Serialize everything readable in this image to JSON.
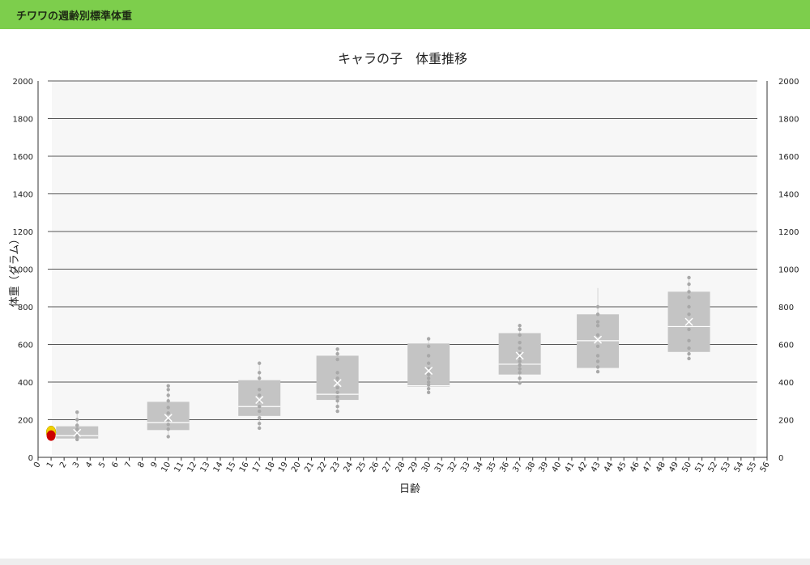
{
  "header": {
    "title": "チワワの週齢別標準体重"
  },
  "chart_data": {
    "type": "box",
    "title": "キャラの子　体重推移",
    "xlabel": "日齢",
    "ylabel": "体重（グラム）",
    "xlim": [
      0,
      56
    ],
    "ylim": [
      0,
      2000
    ],
    "x_ticks": [
      0,
      1,
      2,
      3,
      4,
      5,
      6,
      7,
      8,
      9,
      10,
      11,
      12,
      13,
      14,
      15,
      16,
      17,
      18,
      19,
      20,
      21,
      22,
      23,
      24,
      25,
      26,
      27,
      28,
      29,
      30,
      31,
      32,
      33,
      34,
      35,
      36,
      37,
      38,
      39,
      40,
      41,
      42,
      43,
      44,
      45,
      46,
      47,
      48,
      49,
      50,
      51,
      52,
      53,
      54,
      55,
      56
    ],
    "y_ticks": [
      0,
      200,
      400,
      600,
      800,
      1000,
      1200,
      1400,
      1600,
      1800,
      2000
    ],
    "grid": true,
    "legend": "none",
    "colors": {
      "box": "#c4c4c4",
      "point": "#a8a8a8",
      "gridline": "#555555",
      "marker_outer": "#f0d000",
      "marker_inner": "#cc0000"
    },
    "boxes": [
      {
        "x": 3,
        "min": 90,
        "q1": 100,
        "median": 115,
        "q3": 165,
        "max": 245,
        "mean": 130,
        "points": [
          95,
          110,
          120,
          135,
          150,
          170,
          200,
          240
        ]
      },
      {
        "x": 10,
        "min": 105,
        "q1": 145,
        "median": 185,
        "q3": 295,
        "max": 385,
        "mean": 210,
        "points": [
          110,
          150,
          175,
          200,
          235,
          265,
          300,
          330,
          360,
          380
        ]
      },
      {
        "x": 17,
        "min": 150,
        "q1": 220,
        "median": 270,
        "q3": 410,
        "max": 505,
        "mean": 305,
        "points": [
          155,
          180,
          210,
          245,
          270,
          300,
          330,
          360,
          420,
          450,
          500
        ]
      },
      {
        "x": 23,
        "min": 240,
        "q1": 305,
        "median": 335,
        "q3": 540,
        "max": 575,
        "mean": 395,
        "points": [
          245,
          270,
          300,
          320,
          345,
          370,
          400,
          420,
          450,
          520,
          550,
          575
        ]
      },
      {
        "x": 30,
        "min": 340,
        "q1": 375,
        "median": 380,
        "q3": 605,
        "max": 640,
        "mean": 460,
        "points": [
          345,
          365,
          385,
          400,
          420,
          440,
          470,
          500,
          540,
          590,
          630
        ]
      },
      {
        "x": 37,
        "min": 390,
        "q1": 440,
        "median": 495,
        "q3": 660,
        "max": 710,
        "mean": 540,
        "points": [
          395,
          420,
          450,
          470,
          490,
          510,
          530,
          550,
          580,
          610,
          650,
          680,
          700
        ]
      },
      {
        "x": 43,
        "min": 450,
        "q1": 475,
        "median": 620,
        "q3": 760,
        "max": 900,
        "mean": 625,
        "points": [
          455,
          480,
          510,
          540,
          590,
          650,
          700,
          720,
          760,
          800
        ]
      },
      {
        "x": 50,
        "min": 520,
        "q1": 560,
        "median": 695,
        "q3": 880,
        "max": 960,
        "mean": 720,
        "points": [
          525,
          550,
          580,
          620,
          680,
          760,
          800,
          850,
          880,
          920,
          955
        ]
      }
    ],
    "current_value": {
      "x": 1,
      "y": 120
    }
  }
}
